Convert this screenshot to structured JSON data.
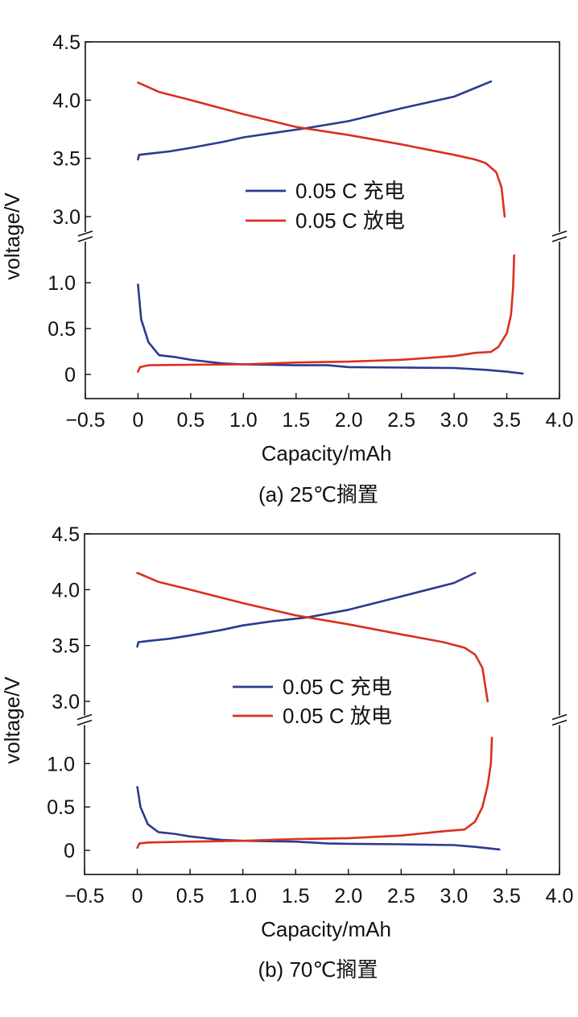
{
  "chart_data": [
    {
      "type": "line",
      "caption": "(a) 25℃搁置",
      "xlabel": "Capacity/mAh",
      "ylabel": "voltage/V",
      "xlim": [
        -0.5,
        4.0
      ],
      "x_ticks": [
        "−0.5",
        "0",
        "0.5",
        "1.0",
        "1.5",
        "2.0",
        "2.5",
        "3.0",
        "3.5",
        "4.0"
      ],
      "y_ticks_upper": [
        "3.0",
        "3.5",
        "4.0",
        "4.5"
      ],
      "y_ticks_lower": [
        "0",
        "0.5",
        "1.0"
      ],
      "y_axis_break": [
        1.3,
        3.0
      ],
      "legend_position": "center",
      "series": [
        {
          "name": "0.05 C 充电",
          "color": "#2b3a8f",
          "points": [
            [
              0.0,
              3.49
            ],
            [
              0.01,
              3.53
            ],
            [
              0.1,
              3.54
            ],
            [
              0.3,
              3.56
            ],
            [
              0.5,
              3.59
            ],
            [
              0.8,
              3.64
            ],
            [
              1.0,
              3.68
            ],
            [
              1.3,
              3.72
            ],
            [
              1.6,
              3.76
            ],
            [
              2.0,
              3.82
            ],
            [
              2.5,
              3.93
            ],
            [
              3.0,
              4.03
            ],
            [
              3.35,
              4.16
            ]
          ],
          "lower_points": [
            [
              0.0,
              0.98
            ],
            [
              0.03,
              0.6
            ],
            [
              0.1,
              0.35
            ],
            [
              0.2,
              0.21
            ],
            [
              0.35,
              0.19
            ],
            [
              0.5,
              0.16
            ],
            [
              0.8,
              0.12
            ],
            [
              1.0,
              0.11
            ],
            [
              1.5,
              0.1
            ],
            [
              1.8,
              0.1
            ],
            [
              2.0,
              0.08
            ],
            [
              2.5,
              0.075
            ],
            [
              3.0,
              0.07
            ],
            [
              3.3,
              0.05
            ],
            [
              3.5,
              0.03
            ],
            [
              3.65,
              0.01
            ]
          ]
        },
        {
          "name": "0.05 C 放电",
          "color": "#d9301f",
          "points": [
            [
              0.0,
              4.15
            ],
            [
              0.2,
              4.07
            ],
            [
              0.5,
              4.0
            ],
            [
              1.0,
              3.88
            ],
            [
              1.5,
              3.77
            ],
            [
              2.0,
              3.7
            ],
            [
              2.5,
              3.62
            ],
            [
              3.0,
              3.53
            ],
            [
              3.2,
              3.49
            ],
            [
              3.3,
              3.46
            ],
            [
              3.4,
              3.38
            ],
            [
              3.45,
              3.25
            ],
            [
              3.48,
              3.0
            ]
          ],
          "lower_points": [
            [
              0.0,
              0.03
            ],
            [
              0.02,
              0.08
            ],
            [
              0.1,
              0.1
            ],
            [
              0.5,
              0.105
            ],
            [
              1.0,
              0.11
            ],
            [
              1.5,
              0.13
            ],
            [
              2.0,
              0.14
            ],
            [
              2.5,
              0.16
            ],
            [
              3.0,
              0.2
            ],
            [
              3.2,
              0.235
            ],
            [
              3.35,
              0.245
            ],
            [
              3.42,
              0.3
            ],
            [
              3.5,
              0.45
            ],
            [
              3.54,
              0.65
            ],
            [
              3.56,
              0.95
            ],
            [
              3.57,
              1.3
            ]
          ]
        }
      ]
    },
    {
      "type": "line",
      "caption": "(b) 70℃搁置",
      "xlabel": "Capacity/mAh",
      "ylabel": "voltage/V",
      "xlim": [
        -0.5,
        4.0
      ],
      "x_ticks": [
        "−0.5",
        "0",
        "0.5",
        "1.0",
        "1.5",
        "2.0",
        "2.5",
        "3.0",
        "3.5",
        "4.0"
      ],
      "y_ticks_upper": [
        "3.0",
        "3.5",
        "4.0",
        "4.5"
      ],
      "y_ticks_lower": [
        "0",
        "0.5",
        "1.0"
      ],
      "y_axis_break": [
        1.3,
        3.0
      ],
      "legend_position": "center",
      "series": [
        {
          "name": "0.05 C 充电",
          "color": "#2b3a8f",
          "points": [
            [
              0.0,
              3.49
            ],
            [
              0.01,
              3.53
            ],
            [
              0.1,
              3.54
            ],
            [
              0.3,
              3.56
            ],
            [
              0.5,
              3.59
            ],
            [
              0.8,
              3.64
            ],
            [
              1.0,
              3.68
            ],
            [
              1.3,
              3.72
            ],
            [
              1.6,
              3.75
            ],
            [
              2.0,
              3.82
            ],
            [
              2.5,
              3.94
            ],
            [
              3.0,
              4.06
            ],
            [
              3.2,
              4.15
            ]
          ],
          "lower_points": [
            [
              0.0,
              0.73
            ],
            [
              0.03,
              0.5
            ],
            [
              0.1,
              0.3
            ],
            [
              0.2,
              0.21
            ],
            [
              0.35,
              0.19
            ],
            [
              0.5,
              0.16
            ],
            [
              0.8,
              0.12
            ],
            [
              1.0,
              0.11
            ],
            [
              1.5,
              0.1
            ],
            [
              1.8,
              0.08
            ],
            [
              2.0,
              0.075
            ],
            [
              2.5,
              0.07
            ],
            [
              3.0,
              0.06
            ],
            [
              3.2,
              0.04
            ],
            [
              3.43,
              0.01
            ]
          ]
        },
        {
          "name": "0.05 C 放电",
          "color": "#d9301f",
          "points": [
            [
              0.0,
              4.15
            ],
            [
              0.2,
              4.07
            ],
            [
              0.5,
              4.0
            ],
            [
              1.0,
              3.88
            ],
            [
              1.5,
              3.77
            ],
            [
              2.0,
              3.69
            ],
            [
              2.5,
              3.6
            ],
            [
              2.9,
              3.53
            ],
            [
              3.1,
              3.48
            ],
            [
              3.2,
              3.42
            ],
            [
              3.27,
              3.3
            ],
            [
              3.32,
              3.0
            ]
          ],
          "lower_points": [
            [
              0.0,
              0.03
            ],
            [
              0.02,
              0.08
            ],
            [
              0.1,
              0.09
            ],
            [
              0.5,
              0.1
            ],
            [
              1.0,
              0.11
            ],
            [
              1.5,
              0.13
            ],
            [
              2.0,
              0.14
            ],
            [
              2.5,
              0.17
            ],
            [
              2.9,
              0.22
            ],
            [
              3.1,
              0.24
            ],
            [
              3.2,
              0.33
            ],
            [
              3.27,
              0.5
            ],
            [
              3.32,
              0.75
            ],
            [
              3.35,
              1.0
            ],
            [
              3.36,
              1.3
            ]
          ]
        }
      ]
    }
  ]
}
